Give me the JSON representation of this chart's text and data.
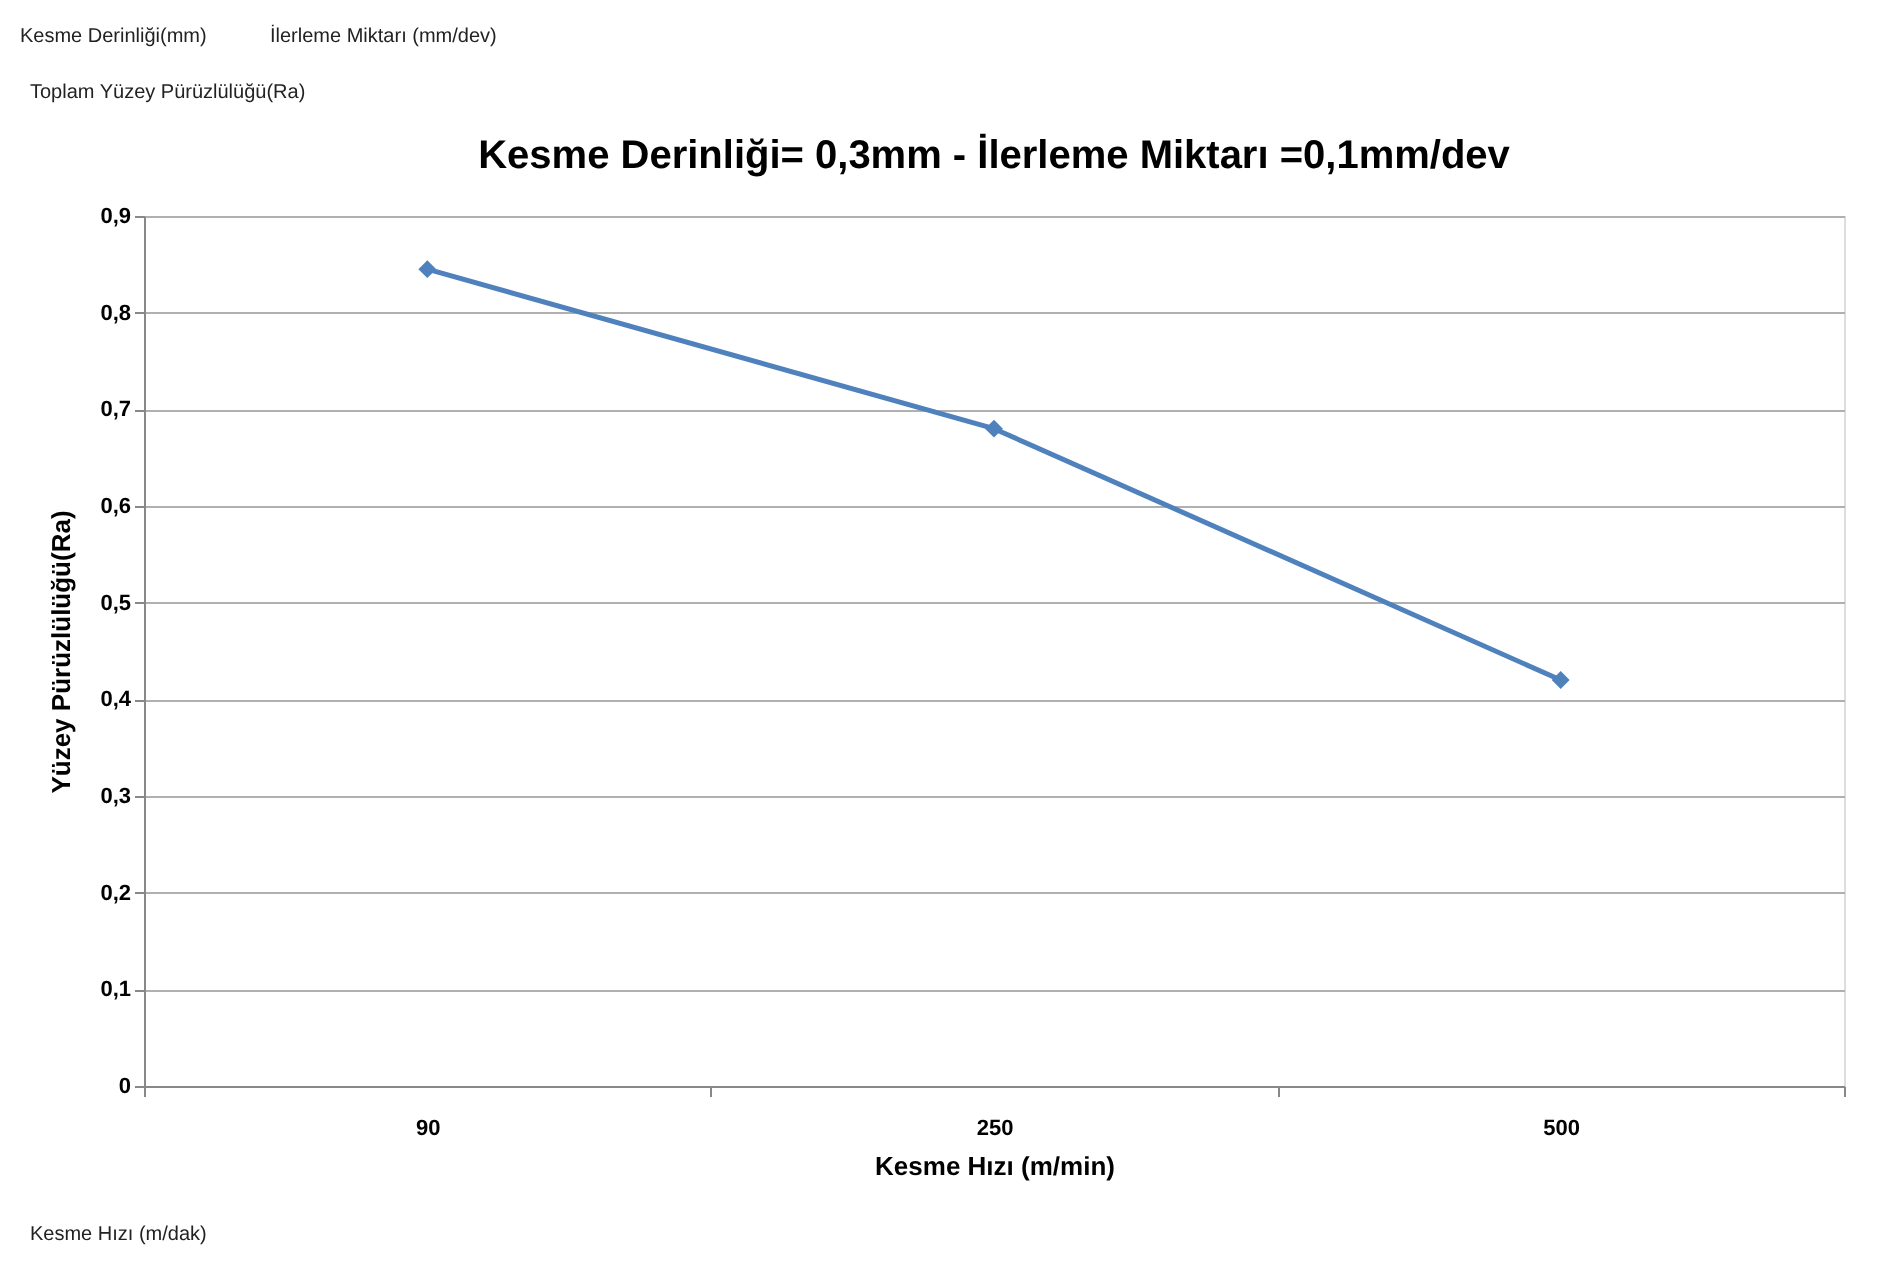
{
  "chart_data": {
    "type": "line",
    "title": "Kesme Derinliği= 0,3mm - İlerleme Miktarı =0,1mm/dev",
    "xlabel": "Kesme Hızı (m/min)",
    "ylabel": "Yüzey Pürüzlülüğü(Ra)",
    "categories": [
      "90",
      "250",
      "500"
    ],
    "series": [
      {
        "color": "#4f81bd",
        "values": [
          0.845,
          0.68,
          0.42
        ]
      }
    ],
    "ylim": [
      0,
      0.9
    ],
    "yticks": [
      {
        "value": 0,
        "label": "0"
      },
      {
        "value": 0.1,
        "label": "0,1"
      },
      {
        "value": 0.2,
        "label": "0,2"
      },
      {
        "value": 0.3,
        "label": "0,3"
      },
      {
        "value": 0.4,
        "label": "0,4"
      },
      {
        "value": 0.5,
        "label": "0,5"
      },
      {
        "value": 0.6,
        "label": "0,6"
      },
      {
        "value": 0.7,
        "label": "0,7"
      },
      {
        "value": 0.8,
        "label": "0,8"
      },
      {
        "value": 0.9,
        "label": "0,9"
      }
    ],
    "grid": "y",
    "marker": "diamond",
    "annotations": [
      "Kesme Derinliği(mm)",
      "İlerleme Miktarı (mm/dev)",
      "Toplam Yüzey Pürüzlülüğü(Ra)",
      "Kesme Hızı (m/dak)"
    ]
  }
}
